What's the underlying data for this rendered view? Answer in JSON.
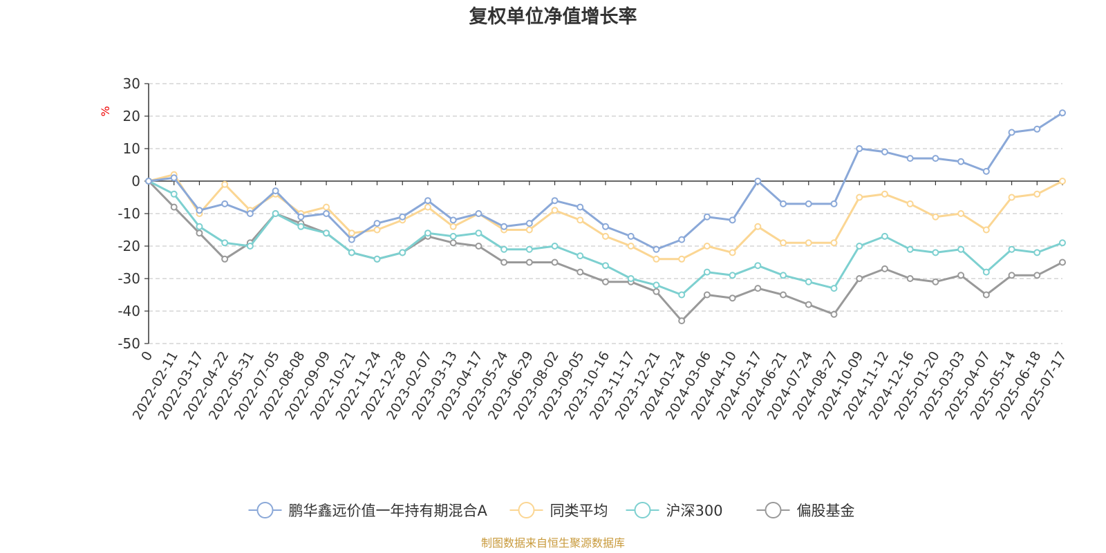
{
  "chart_data": {
    "type": "line",
    "title": "复权单位净值增长率",
    "ylabel": "%",
    "ylim": [
      -50,
      30
    ],
    "yticks": [
      30,
      20,
      10,
      0,
      -10,
      -20,
      -30,
      -40,
      -50
    ],
    "grid": true,
    "legend_position": "bottom-center",
    "categories": [
      "0",
      "2022-02-11",
      "2022-03-17",
      "2022-04-22",
      "2022-05-31",
      "2022-07-05",
      "2022-08-08",
      "2022-09-09",
      "2022-10-21",
      "2022-11-24",
      "2022-12-28",
      "2023-02-07",
      "2023-03-13",
      "2023-04-17",
      "2023-05-24",
      "2023-06-29",
      "2023-08-02",
      "2023-09-05",
      "2023-10-16",
      "2023-11-17",
      "2023-12-21",
      "2024-01-24",
      "2024-03-06",
      "2024-04-10",
      "2024-05-17",
      "2024-06-21",
      "2024-07-24",
      "2024-08-27",
      "2024-10-09",
      "2024-11-12",
      "2024-12-16",
      "2025-01-20",
      "2025-03-03",
      "2025-04-07",
      "2025-05-14",
      "2025-06-18",
      "2025-07-17"
    ],
    "series": [
      {
        "name": "鹏华鑫远价值一年持有期混合A",
        "color": "#8aa8d8",
        "values": [
          0,
          1,
          -9,
          -7,
          -10,
          -3,
          -11,
          -10,
          -18,
          -13,
          -11,
          -6,
          -12,
          -10,
          -14,
          -13,
          -6,
          -8,
          -14,
          -17,
          -21,
          -18,
          -11,
          -12,
          0,
          -7,
          -7,
          -7,
          10,
          9,
          7,
          7,
          6,
          3,
          15,
          16,
          21
        ]
      },
      {
        "name": "同类平均",
        "color": "#fbd693",
        "values": [
          0,
          2,
          -10,
          -1,
          -9,
          -4,
          -10,
          -8,
          -16,
          -15,
          -12,
          -8,
          -14,
          -10,
          -15,
          -15,
          -9,
          -12,
          -17,
          -20,
          -24,
          -24,
          -20,
          -22,
          -14,
          -19,
          -19,
          -19,
          -5,
          -4,
          -7,
          -11,
          -10,
          -15,
          -5,
          -4,
          0
        ]
      },
      {
        "name": "沪深300",
        "color": "#7dd0d0",
        "values": [
          0,
          -4,
          -14,
          -19,
          -20,
          -10,
          -14,
          -16,
          -22,
          -24,
          -22,
          -16,
          -17,
          -16,
          -21,
          -21,
          -20,
          -23,
          -26,
          -30,
          -32,
          -35,
          -28,
          -29,
          -26,
          -29,
          -31,
          -33,
          -20,
          -17,
          -21,
          -22,
          -21,
          -28,
          -21,
          -22,
          -19
        ]
      },
      {
        "name": "偏股基金",
        "color": "#999999",
        "values": [
          0,
          -8,
          -16,
          -24,
          -19,
          -10,
          -13,
          -16,
          -22,
          -24,
          -22,
          -17,
          -19,
          -20,
          -25,
          -25,
          -25,
          -28,
          -31,
          -31,
          -34,
          -43,
          -35,
          -36,
          -33,
          -35,
          -38,
          -41,
          -30,
          -27,
          -30,
          -31,
          -29,
          -35,
          -29,
          -29,
          -25
        ]
      }
    ]
  },
  "source_note": "制图数据来自恒生聚源数据库"
}
